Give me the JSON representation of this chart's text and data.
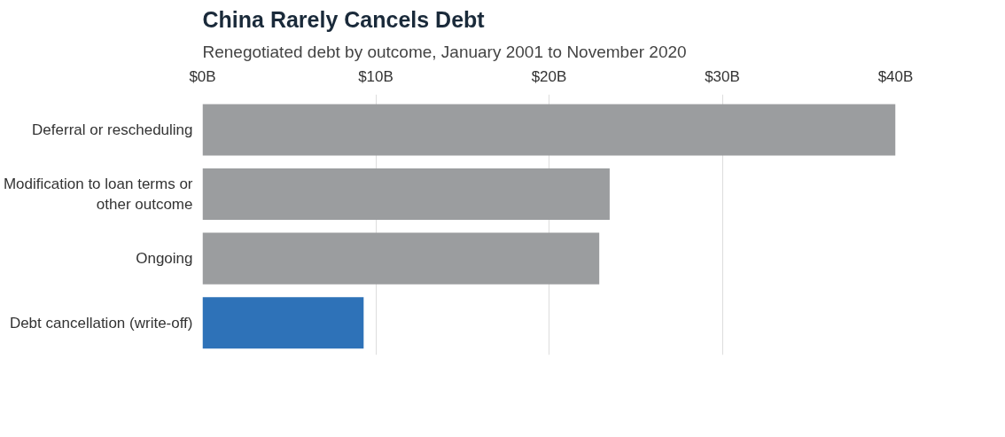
{
  "chart_data": {
    "type": "bar",
    "orientation": "horizontal",
    "title": "China Rarely Cancels Debt",
    "subtitle": "Renegotiated debt by outcome, January 2001 to November 2020",
    "categories": [
      "Deferral or rescheduling",
      "Modification to loan terms or other outcome",
      "Ongoing",
      "Debt cancellation (write-off)"
    ],
    "values": [
      40,
      23.5,
      22.9,
      9.3
    ],
    "colors": [
      "#9b9d9f",
      "#9b9d9f",
      "#9b9d9f",
      "#2e72b8"
    ],
    "xlim": [
      0,
      40
    ],
    "xticks": [
      {
        "value": 0,
        "label": "$0B"
      },
      {
        "value": 10,
        "label": "$10B"
      },
      {
        "value": 20,
        "label": "$20B"
      },
      {
        "value": 30,
        "label": "$30B"
      },
      {
        "value": 40,
        "label": "$40B"
      }
    ],
    "grid": "x"
  }
}
